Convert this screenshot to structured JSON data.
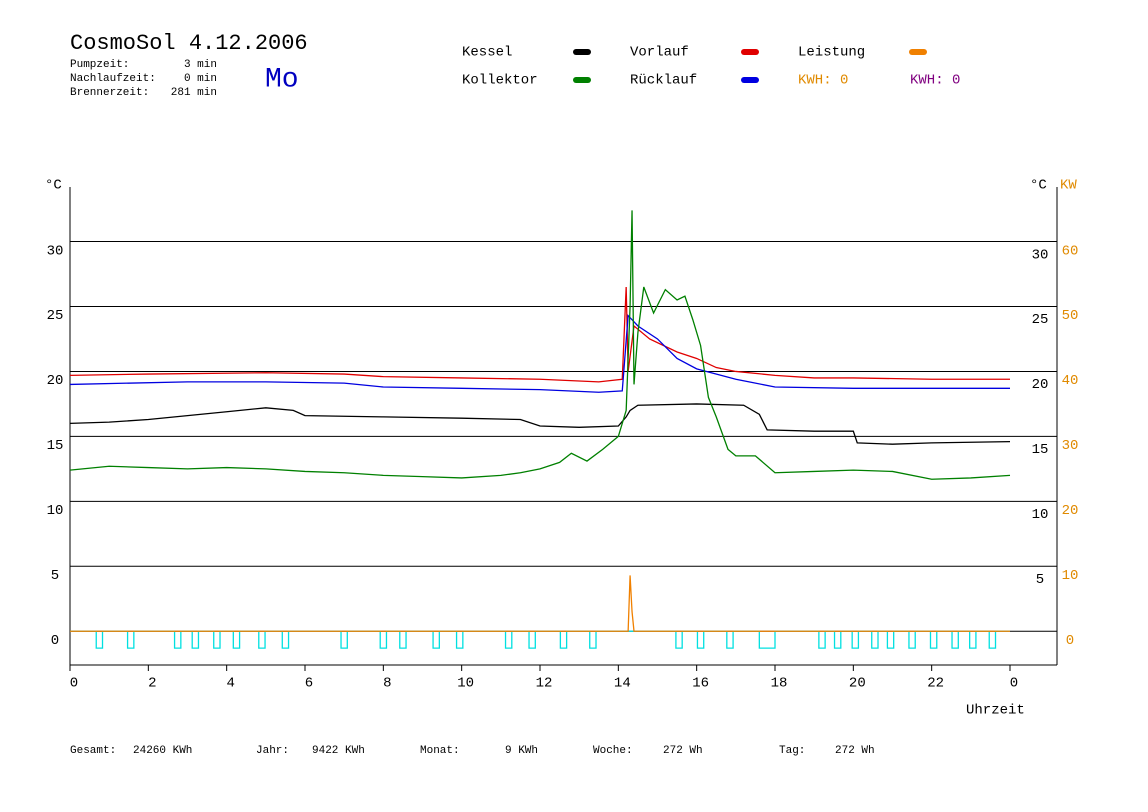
{
  "chart_data": {
    "type": "line",
    "title": "CosmoSol 4.12.2006",
    "day": "Mo",
    "info": [
      {
        "label": "Pumpzeit:",
        "value": "3 min"
      },
      {
        "label": "Nachlaufzeit:",
        "value": "0 min"
      },
      {
        "label": "Brennerzeit:",
        "value": "281 min"
      }
    ],
    "y_label": "°C",
    "y_label_right": "°C",
    "y2_label": "KW",
    "x_label": "Uhrzeit",
    "kwh_labels": [
      {
        "text": "KWH: 0",
        "color": "#e08a00"
      },
      {
        "text": "KWH: 0",
        "color": "#800080"
      }
    ],
    "xlim": [
      0,
      25.2
    ],
    "xticks": [
      0,
      2,
      4,
      6,
      8,
      10,
      12,
      14,
      16,
      18,
      20,
      22,
      {
        "value": 24,
        "label": "0"
      }
    ],
    "ylim": [
      -2.6,
      34.2
    ],
    "yticks": [
      0,
      5,
      10,
      15,
      20,
      25,
      30
    ],
    "yticks_right": [
      5,
      10,
      15,
      20,
      25,
      30
    ],
    "y2lim": [
      -5.2,
      68.4
    ],
    "y2ticks": [
      0,
      10,
      20,
      30,
      40,
      50,
      60
    ],
    "grid": true,
    "series": [
      {
        "name": "Kessel",
        "color": "#000000",
        "x": [
          0,
          1,
          2,
          3,
          4,
          5,
          5.7,
          6,
          8,
          10,
          11.5,
          12,
          13,
          14,
          14.2,
          14.3,
          14.5,
          16,
          17.2,
          17.6,
          17.8,
          19,
          20,
          20.1,
          21,
          22,
          24
        ],
        "values": [
          16.0,
          16.1,
          16.3,
          16.6,
          16.9,
          17.2,
          17.0,
          16.6,
          16.5,
          16.4,
          16.3,
          15.8,
          15.7,
          15.8,
          16.5,
          17.0,
          17.4,
          17.5,
          17.4,
          16.7,
          15.5,
          15.4,
          15.4,
          14.5,
          14.4,
          14.5,
          14.6
        ]
      },
      {
        "name": "Vorlauf",
        "color": "#e00000",
        "x": [
          0,
          2,
          5,
          7,
          8,
          10,
          12,
          13.5,
          14.1,
          14.2,
          14.25,
          14.4,
          14.8,
          15.5,
          16,
          16.5,
          17,
          18,
          19,
          20,
          22,
          24
        ],
        "values": [
          19.7,
          19.8,
          19.9,
          19.8,
          19.6,
          19.5,
          19.4,
          19.2,
          19.4,
          26.5,
          20,
          23.5,
          22.5,
          21.5,
          21,
          20.3,
          20,
          19.7,
          19.5,
          19.5,
          19.4,
          19.4
        ]
      },
      {
        "name": "Leistung",
        "color": "#f08000",
        "axis": "y2",
        "x": [
          0,
          14.25,
          14.3,
          14.35,
          14.4,
          24
        ],
        "values": [
          0,
          0,
          8.6,
          3,
          0,
          0
        ]
      },
      {
        "name": "Kollektor",
        "color": "#008000",
        "x": [
          0,
          1,
          2,
          3,
          4,
          5,
          6,
          7,
          8,
          9,
          10,
          11,
          11.5,
          12,
          12.5,
          12.8,
          13.2,
          13.6,
          14,
          14.2,
          14.3,
          14.35,
          14.4,
          14.5,
          14.65,
          14.9,
          15.2,
          15.5,
          15.7,
          15.9,
          16.1,
          16.3,
          16.5,
          16.8,
          17,
          17.5,
          18,
          19,
          20,
          21,
          22,
          23,
          24
        ],
        "values": [
          12.4,
          12.7,
          12.6,
          12.5,
          12.6,
          12.5,
          12.3,
          12.2,
          12.0,
          11.9,
          11.8,
          12.0,
          12.2,
          12.5,
          13.0,
          13.7,
          13.1,
          14,
          15,
          17,
          25,
          32.4,
          19,
          23,
          26.5,
          24.5,
          26.3,
          25.5,
          25.8,
          24,
          22,
          18,
          16.5,
          14,
          13.5,
          13.5,
          12.2,
          12.3,
          12.4,
          12.3,
          11.7,
          11.8,
          12.0
        ]
      },
      {
        "name": "Rücklauf",
        "color": "#0000e0",
        "x": [
          0,
          3,
          5,
          7,
          8,
          10,
          12,
          13.5,
          14.1,
          14.25,
          14.5,
          15,
          15.5,
          16,
          17,
          18,
          20,
          24
        ],
        "values": [
          19.0,
          19.2,
          19.2,
          19.1,
          18.8,
          18.7,
          18.6,
          18.4,
          18.5,
          24.3,
          23.5,
          22.5,
          21,
          20.2,
          19.4,
          18.8,
          18.7,
          18.7
        ]
      },
      {
        "color": "#00e0e0",
        "x": [
          0,
          0.67,
          0.67,
          0.83,
          0.83,
          1.47,
          1.47,
          1.63,
          1.63,
          2.67,
          2.67,
          2.83,
          2.83,
          3.12,
          3.12,
          3.28,
          3.28,
          3.67,
          3.67,
          3.83,
          3.83,
          4.17,
          4.17,
          4.33,
          4.33,
          4.82,
          4.82,
          4.98,
          4.98,
          5.42,
          5.42,
          5.58,
          5.58,
          6.92,
          6.92,
          7.08,
          7.08,
          7.92,
          7.92,
          8.08,
          8.08,
          8.42,
          8.42,
          8.58,
          8.58,
          9.27,
          9.27,
          9.43,
          9.43,
          9.87,
          9.87,
          10.03,
          10.03,
          11.12,
          11.12,
          11.28,
          11.28,
          11.72,
          11.72,
          11.88,
          11.88,
          12.52,
          12.52,
          12.68,
          12.68,
          13.27,
          13.27,
          13.43,
          13.43,
          15.47,
          15.47,
          15.63,
          15.63,
          16.02,
          16.02,
          16.18,
          16.18,
          16.77,
          16.77,
          16.93,
          16.93,
          17.6,
          17.6,
          18.0,
          18.0,
          19.12,
          19.12,
          19.28,
          19.28,
          19.52,
          19.52,
          19.68,
          19.68,
          19.97,
          19.97,
          20.13,
          20.13,
          20.47,
          20.47,
          20.63,
          20.63,
          20.87,
          20.87,
          21.03,
          21.03,
          21.42,
          21.42,
          21.58,
          21.58,
          21.97,
          21.97,
          22.13,
          22.13,
          22.52,
          22.52,
          22.68,
          22.68,
          22.97,
          22.97,
          23.13,
          23.13,
          23.47,
          23.47,
          23.63,
          23.63,
          24
        ],
        "values": [
          0,
          0,
          -1.3,
          -1.3,
          0,
          0,
          -1.3,
          -1.3,
          0,
          0,
          -1.3,
          -1.3,
          0,
          0,
          -1.3,
          -1.3,
          0,
          0,
          -1.3,
          -1.3,
          0,
          0,
          -1.3,
          -1.3,
          0,
          0,
          -1.3,
          -1.3,
          0,
          0,
          -1.3,
          -1.3,
          0,
          0,
          -1.3,
          -1.3,
          0,
          0,
          -1.3,
          -1.3,
          0,
          0,
          -1.3,
          -1.3,
          0,
          0,
          -1.3,
          -1.3,
          0,
          0,
          -1.3,
          -1.3,
          0,
          0,
          -1.3,
          -1.3,
          0,
          0,
          -1.3,
          -1.3,
          0,
          0,
          -1.3,
          -1.3,
          0,
          0,
          -1.3,
          -1.3,
          0,
          0,
          -1.3,
          -1.3,
          0,
          0,
          -1.3,
          -1.3,
          0,
          0,
          -1.3,
          -1.3,
          0,
          0,
          -1.3,
          -1.3,
          0,
          0,
          -1.3,
          -1.3,
          0,
          0,
          -1.3,
          -1.3,
          0,
          0,
          -1.3,
          -1.3,
          0,
          0,
          -1.3,
          -1.3,
          0,
          0,
          -1.3,
          -1.3,
          0,
          0,
          -1.3,
          -1.3,
          0,
          0,
          -1.3,
          -1.3,
          0,
          0,
          -1.3,
          -1.3,
          0,
          0,
          -1.3,
          -1.3,
          0,
          0,
          -1.3,
          -1.3,
          0,
          0
        ]
      }
    ],
    "footer": [
      {
        "label": "Gesamt:",
        "value": "24260 KWh"
      },
      {
        "label": "Jahr:",
        "value": "9422 KWh"
      },
      {
        "label": "Monat:",
        "value": "9 KWh"
      },
      {
        "label": "Woche:",
        "value": "272 Wh"
      },
      {
        "label": "Tag:",
        "value": "272 Wh"
      }
    ]
  }
}
